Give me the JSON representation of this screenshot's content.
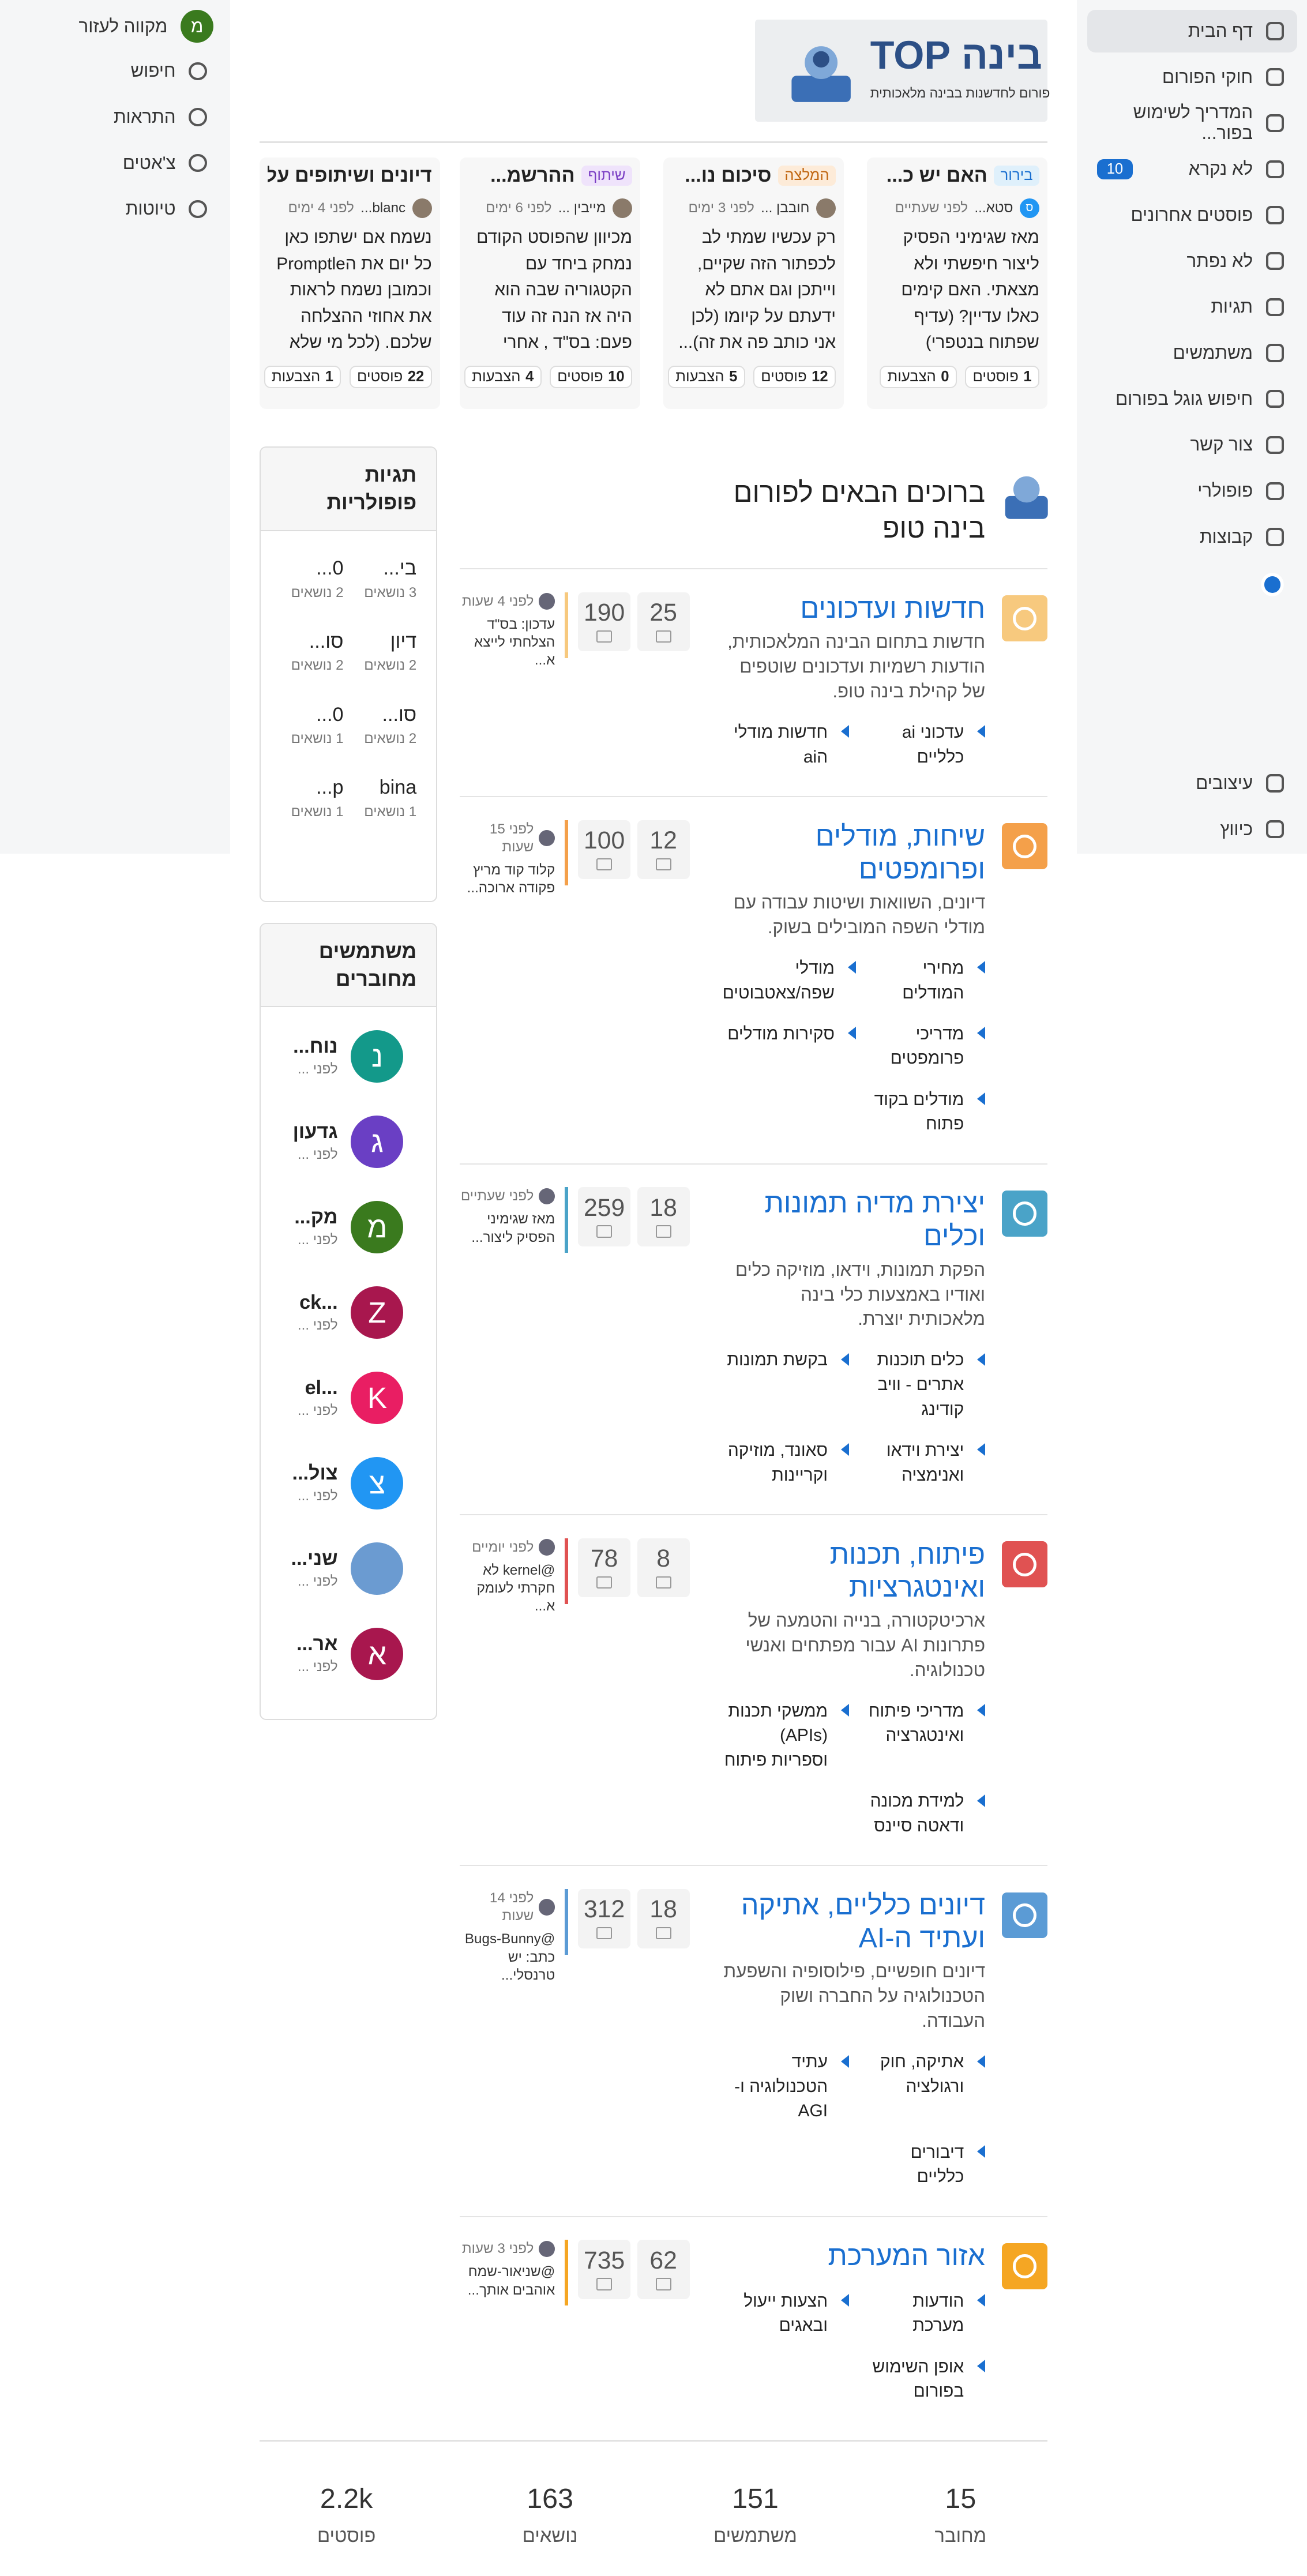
{
  "logo": {
    "brand": "בינה TOP",
    "tagline": "פורום לחדשנות בבינה מלאכותית"
  },
  "nav": {
    "items": [
      "דף הבית",
      "חוקי הפורום",
      "המדריך לשימוש בפור...",
      "לא נקרא",
      "פוסטים אחרונים",
      "לא נפתר",
      "תגיות",
      "משתמשים",
      "חיפוש גוגל בפורום",
      "צור קשר",
      "פופולרי",
      "קבוצות"
    ],
    "unread_badge": "10",
    "bottom": [
      "עיצובים",
      "כיווץ"
    ]
  },
  "header": {
    "avatar": "מ",
    "user": "מקווה לעזור",
    "items": [
      "חיפוש",
      "התראות",
      "צ'אטים",
      "טיוטות"
    ]
  },
  "featured": [
    {
      "tag": "בירור",
      "tag_color": "#dff0fb",
      "tag_text": "#1a6fd0",
      "title": "האם יש כ...",
      "avatar": "ס",
      "user": "סטא...",
      "time": "לפני שעתיים",
      "text": "מאז שגימיני הפסיק ליצור חיפשתי ולא מצאתי. האם קימים כאלו עדיין? (עדיף שפתוח בנטפרי)",
      "posts": "1",
      "posts_label": "פוסטים",
      "votes": "0",
      "votes_label": "הצבעות"
    },
    {
      "tag": "המלצה",
      "tag_color": "#fdebd8",
      "tag_text": "#c0650f",
      "title": "סיכום נו...",
      "user": "חובבן ...",
      "time": "לפני 3 ימים",
      "text": "רק עכשיו שמתי לב לכפתור הזה שקיים, וייתכן וגם אתם לא ידעתם על קיומו (לכן אני כותב פה את זה)...",
      "posts": "12",
      "posts_label": "פוסטים",
      "votes": "5",
      "votes_label": "הצבעות"
    },
    {
      "tag": "שיתוף",
      "tag_color": "#efe3fb",
      "tag_text": "#7b3fc4",
      "title": "ההרשמ...",
      "user": "מייבין ...",
      "time": "לפני 6 ימים",
      "text": "מכיוון שהפוסט הקודם נמחק ביחד עם הקטגוריה שבה הוא היה אז הנה זה עוד פעם: בס\"ד , אחרי הרבה...",
      "posts": "10",
      "posts_label": "פוסטים",
      "votes": "4",
      "votes_label": "הצבעות"
    },
    {
      "title": "דיונים ושיתופים על...",
      "user": "blanc...",
      "time": "לפני 4 ימים",
      "text": "נשמח אם ישתפו כאן כל יום את הPromptle וכמובן נשמח לראות את אחוזי ההצלחה שלכם. (לכל מי שלא יודע מה...",
      "posts": "22",
      "posts_label": "פוסטים",
      "votes": "1",
      "votes_label": "הצבעות"
    }
  ],
  "welcome": "ברוכים הבאים לפורום בינה טופ",
  "categories": [
    {
      "title": "חדשות ועדכונים",
      "color": "#f7c97e",
      "desc": "חדשות בתחום הבינה המלאכותית, הודעות רשמיות ועדכונים שוטפים של קהילת בינה טופ.",
      "topics": "25",
      "posts": "190",
      "subs": [
        "עדכוני ai כלליים",
        "חדשות מודלי הai"
      ],
      "last_time": "לפני 4 שעות",
      "last_text": "עדכון: בס\"ד הצלחתי לייצא א..."
    },
    {
      "title": "שיחות, מודלים ופרומפטים",
      "color": "#f4a04a",
      "desc": "דיונים, השוואות ושיטות עבודה עם מודלי השפה המובילים בשוק.",
      "topics": "12",
      "posts": "100",
      "subs": [
        "מחירי המודלים",
        "מודלי שפה/צאטבוטים",
        "מדריכי פרומפטים",
        "סקירות מודלים",
        "מודלים בקוד פתוח"
      ],
      "last_time": "לפני 15 שעות",
      "last_text": "קלוד קוד מריץ פקודה ארוכה..."
    },
    {
      "title": "יצירת מדיה תמונות וכלים",
      "color": "#4aa3c8",
      "desc": "הפקת תמונות, וידאו, מוזיקה כלים ואודיו באמצעות כלי בינה מלאכותית יוצרת.",
      "topics": "18",
      "posts": "259",
      "subs": [
        "כלים תוכנות אתרים - וויב קודינג",
        "בקשת תמונות",
        "יצירת וידאו ואנימציה",
        "סאונד, מוזיקה וקריינות"
      ],
      "last_time": "לפני שעתיים",
      "last_text": "מאז שגימיני הפסיק ליצור..."
    },
    {
      "title": "פיתוח, תכנות ואינטגרציות",
      "color": "#e05252",
      "desc": "ארכיטקטורה, בנייה והטמעה של פתרונות AI עבור מפתחים ואנשי טכנולוגיה.",
      "topics": "8",
      "posts": "78",
      "subs": [
        "מדריכי פיתוח ואינטגרציה",
        "ממשקי תכנות (APIs) וספריות פיתוח",
        "למידת מכונה ודאטה סיינס"
      ],
      "last_time": "לפני יומיים",
      "last_text": "@kernel לא חקרתי לעומק א..."
    },
    {
      "title": "דיונים כלליים, אתיקה ועתיד ה-AI",
      "color": "#5b9bd5",
      "desc": "דיונים חופשיים, פילוסופיה והשפעת הטכנולוגיה על החברה ושוק העבודה.",
      "topics": "18",
      "posts": "312",
      "subs": [
        "אתיקה, חוק ורגולציה",
        "עתיד הטכנולוגיה ו-AGI",
        "דיבורים כלליים"
      ],
      "last_time": "לפני 14 שעות",
      "last_text": "@Bugs-Bunny כתב: יש טרנסלי..."
    },
    {
      "title": "אזור המערכת",
      "color": "#f5a623",
      "topics": "62",
      "posts": "735",
      "subs": [
        "הודעות מערכת",
        "הצעות ייעול ובאגים",
        "אופן השימוש בפורום"
      ],
      "last_time": "לפני 3 שעות",
      "last_text": "@שניאור-שמח אוהבים אותך..."
    }
  ],
  "popular_tags": {
    "title": "תגיות פופולריות",
    "tags": [
      {
        "name": "בי...",
        "count": "3 נושאים"
      },
      {
        "name": "0...",
        "count": "2 נושאים"
      },
      {
        "name": "דיון",
        "count": "2 נושאים"
      },
      {
        "name": "סו...",
        "count": "2 נושאים"
      },
      {
        "name": "סו...",
        "count": "2 נושאים"
      },
      {
        "name": "0...",
        "count": "1 נושאים"
      },
      {
        "name": "bina",
        "count": "1 נושאים"
      },
      {
        "name": "p...",
        "count": "1 נושאים"
      }
    ]
  },
  "online_users": {
    "title": "משתמשים מחוברים",
    "users": [
      {
        "avatar": "נ",
        "color": "#13998a",
        "name": "נוח...",
        "time": "לפני ..."
      },
      {
        "avatar": "ג",
        "color": "#6a3fc4",
        "name": "גדעון",
        "time": "לפני ..."
      },
      {
        "avatar": "מ",
        "color": "#3a7a1e",
        "name": "מק...",
        "time": "לפני ..."
      },
      {
        "avatar": "Z",
        "color": "#a8174e",
        "name": "...ck",
        "time": "לפני ..."
      },
      {
        "avatar": "K",
        "color": "#e91e63",
        "name": "...el",
        "time": "לפני ..."
      },
      {
        "avatar": "צ",
        "color": "#2196f3",
        "name": "צול...",
        "time": "לפני ..."
      },
      {
        "color": "#6b9bd1",
        "name": "שני...",
        "time": "לפני ..."
      },
      {
        "avatar": "א",
        "color": "#a8174e",
        "name": "אר...",
        "time": "לפני ..."
      }
    ]
  },
  "stats": [
    {
      "value": "15",
      "label": "מחובר"
    },
    {
      "value": "151",
      "label": "משתמשים"
    },
    {
      "value": "163",
      "label": "נושאים"
    },
    {
      "value": "2.2k",
      "label": "פוסטים"
    }
  ]
}
